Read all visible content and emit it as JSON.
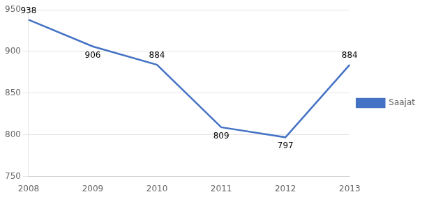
{
  "chart_data": {
    "type": "line",
    "categories": [
      "2008",
      "2009",
      "2010",
      "2011",
      "2012",
      "2013"
    ],
    "series": [
      {
        "name": "Saajat",
        "color": "#4472C4",
        "values": [
          938,
          906,
          884,
          809,
          797,
          884
        ]
      }
    ],
    "ylim": [
      750,
      950
    ],
    "yticks": [
      750,
      800,
      850,
      900,
      950
    ],
    "grid": true,
    "legend": "right",
    "data_labels": true
  }
}
